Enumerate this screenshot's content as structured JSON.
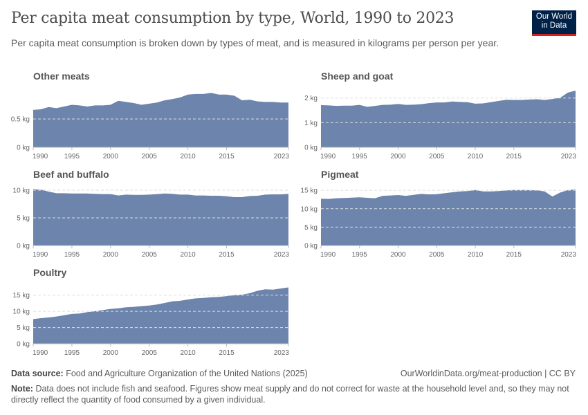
{
  "header": {
    "title": "Per capita meat consumption by type, World, 1990 to 2023",
    "subtitle": "Per capita meat consumption is broken down by types of meat, and is measured in kilograms per person per year.",
    "logo_line1": "Our World",
    "logo_line2": "in Data"
  },
  "footer": {
    "source_label": "Data source:",
    "source_text": "Food and Agriculture Organization of the United Nations (2025)",
    "url": "OurWorldinData.org/meat-production | CC BY",
    "note_label": "Note:",
    "note_text": "Data does not include fish and seafood. Figures show meat supply and do not correct for waste at the household level and, so they may not directly reflect the quantity of food consumed by a given individual."
  },
  "colors": {
    "area": "#6d84ad",
    "grid": "#dddddd",
    "axis": "#bbbbbb"
  },
  "chart_data": [
    {
      "type": "area",
      "title": "Other meats",
      "unit": "kg",
      "x": [
        1990,
        1991,
        1992,
        1993,
        1994,
        1995,
        1996,
        1997,
        1998,
        1999,
        2000,
        2001,
        2002,
        2003,
        2004,
        2005,
        2006,
        2007,
        2008,
        2009,
        2010,
        2011,
        2012,
        2013,
        2014,
        2015,
        2016,
        2017,
        2018,
        2019,
        2020,
        2021,
        2022,
        2023
      ],
      "values": [
        0.66,
        0.67,
        0.71,
        0.69,
        0.72,
        0.75,
        0.74,
        0.72,
        0.74,
        0.74,
        0.75,
        0.82,
        0.8,
        0.78,
        0.75,
        0.77,
        0.79,
        0.83,
        0.85,
        0.88,
        0.93,
        0.94,
        0.94,
        0.96,
        0.93,
        0.93,
        0.91,
        0.83,
        0.84,
        0.81,
        0.8,
        0.8,
        0.79,
        0.79
      ],
      "ylim": [
        0,
        1.0
      ],
      "yticks": [
        0,
        0.5
      ],
      "yticklabels": [
        "0 kg",
        "0.5 kg"
      ],
      "xticks": [
        1990,
        1995,
        2000,
        2005,
        2010,
        2015,
        2023
      ],
      "xticklabels": [
        "1990",
        "1995",
        "2000",
        "2005",
        "2010",
        "2015",
        "2023"
      ]
    },
    {
      "type": "area",
      "title": "Sheep and goat",
      "unit": "kg",
      "x": [
        1990,
        1991,
        1992,
        1993,
        1994,
        1995,
        1996,
        1997,
        1998,
        1999,
        2000,
        2001,
        2002,
        2003,
        2004,
        2005,
        2006,
        2007,
        2008,
        2009,
        2010,
        2011,
        2012,
        2013,
        2014,
        2015,
        2016,
        2017,
        2018,
        2019,
        2020,
        2021,
        2022,
        2023
      ],
      "values": [
        1.71,
        1.7,
        1.68,
        1.69,
        1.69,
        1.72,
        1.64,
        1.68,
        1.72,
        1.73,
        1.76,
        1.72,
        1.73,
        1.75,
        1.79,
        1.82,
        1.82,
        1.86,
        1.84,
        1.83,
        1.77,
        1.78,
        1.83,
        1.88,
        1.93,
        1.92,
        1.92,
        1.94,
        1.95,
        1.92,
        1.96,
        2.01,
        2.22,
        2.3
      ],
      "ylim": [
        0,
        2.3
      ],
      "yticks": [
        0,
        1,
        2
      ],
      "yticklabels": [
        "0 kg",
        "1 kg",
        "2 kg"
      ],
      "xticks": [
        1990,
        1995,
        2000,
        2005,
        2010,
        2015,
        2023
      ],
      "xticklabels": [
        "1990",
        "1995",
        "2000",
        "2005",
        "2010",
        "2015",
        "2023"
      ]
    },
    {
      "type": "area",
      "title": "Beef and buffalo",
      "unit": "kg",
      "x": [
        1990,
        1991,
        1992,
        1993,
        1994,
        1995,
        1996,
        1997,
        1998,
        1999,
        2000,
        2001,
        2002,
        2003,
        2004,
        2005,
        2006,
        2007,
        2008,
        2009,
        2010,
        2011,
        2012,
        2013,
        2014,
        2015,
        2016,
        2017,
        2018,
        2019,
        2020,
        2021,
        2022,
        2023
      ],
      "values": [
        10.2,
        10.1,
        9.75,
        9.45,
        9.45,
        9.4,
        9.4,
        9.4,
        9.35,
        9.3,
        9.3,
        9.05,
        9.2,
        9.15,
        9.15,
        9.2,
        9.3,
        9.4,
        9.35,
        9.2,
        9.2,
        9.05,
        9.05,
        9.0,
        9.0,
        8.9,
        8.75,
        8.75,
        8.95,
        9.0,
        9.2,
        9.25,
        9.25,
        9.35
      ],
      "ylim": [
        0,
        10.25
      ],
      "yticks": [
        0,
        5,
        10
      ],
      "yticklabels": [
        "0 kg",
        "5 kg",
        "10 kg"
      ],
      "xticks": [
        1990,
        1995,
        2000,
        2005,
        2010,
        2015,
        2023
      ],
      "xticklabels": [
        "1990",
        "1995",
        "2000",
        "2005",
        "2010",
        "2015",
        "2023"
      ]
    },
    {
      "type": "area",
      "title": "Pigmeat",
      "unit": "kg",
      "x": [
        1990,
        1991,
        1992,
        1993,
        1994,
        1995,
        1996,
        1997,
        1998,
        1999,
        2000,
        2001,
        2002,
        2003,
        2004,
        2005,
        2006,
        2007,
        2008,
        2009,
        2010,
        2011,
        2012,
        2013,
        2014,
        2015,
        2016,
        2017,
        2018,
        2019,
        2020,
        2021,
        2022,
        2023
      ],
      "values": [
        12.7,
        12.65,
        12.85,
        12.9,
        13.0,
        13.1,
        12.95,
        12.85,
        13.5,
        13.6,
        13.7,
        13.5,
        13.75,
        14.05,
        13.9,
        13.95,
        14.2,
        14.45,
        14.7,
        14.8,
        15.1,
        14.7,
        14.7,
        14.8,
        14.95,
        15.1,
        15.1,
        15.05,
        15.0,
        14.7,
        13.3,
        14.4,
        15.05,
        15.25
      ],
      "ylim": [
        0,
        15.4
      ],
      "yticks": [
        0,
        5,
        10,
        15
      ],
      "yticklabels": [
        "0 kg",
        "5 kg",
        "10 kg",
        "15 kg"
      ],
      "xticks": [
        1990,
        1995,
        2000,
        2005,
        2010,
        2015,
        2023
      ],
      "xticklabels": [
        "1990",
        "1995",
        "2000",
        "2005",
        "2010",
        "2015",
        "2023"
      ]
    },
    {
      "type": "area",
      "title": "Poultry",
      "unit": "kg",
      "x": [
        1990,
        1991,
        1992,
        1993,
        1994,
        1995,
        1996,
        1997,
        1998,
        1999,
        2000,
        2001,
        2002,
        2003,
        2004,
        2005,
        2006,
        2007,
        2008,
        2009,
        2010,
        2011,
        2012,
        2013,
        2014,
        2015,
        2016,
        2017,
        2018,
        2019,
        2020,
        2021,
        2022,
        2023
      ],
      "values": [
        7.6,
        7.9,
        8.1,
        8.4,
        8.8,
        9.2,
        9.35,
        9.75,
        10.05,
        10.4,
        10.75,
        10.95,
        11.25,
        11.4,
        11.6,
        11.8,
        12.1,
        12.6,
        13.1,
        13.25,
        13.65,
        14.0,
        14.15,
        14.35,
        14.45,
        14.7,
        15.0,
        15.15,
        15.6,
        16.35,
        16.8,
        16.7,
        17.05,
        17.4
      ],
      "ylim": [
        0,
        17.5
      ],
      "yticks": [
        0,
        5,
        10,
        15
      ],
      "yticklabels": [
        "0 kg",
        "5 kg",
        "10 kg",
        "15 kg"
      ],
      "xticks": [
        1990,
        1995,
        2000,
        2005,
        2010,
        2015,
        2023
      ],
      "xticklabels": [
        "1990",
        "1995",
        "2000",
        "2005",
        "2010",
        "2015",
        "2023"
      ]
    }
  ]
}
